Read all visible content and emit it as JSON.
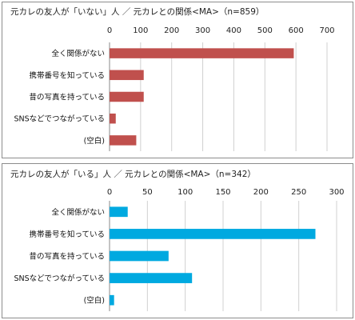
{
  "chart_data": [
    {
      "type": "bar",
      "orientation": "horizontal",
      "title": "元カレの友人が「いない」人 ／ 元カレとの関係<MA>（n=859）",
      "categories": [
        "全く関係がない",
        "携帯番号を知っている",
        "昔の写真を持っている",
        "SNSなどでつながっている",
        "(空白)"
      ],
      "values": [
        593,
        110,
        110,
        20,
        86
      ],
      "xticks": [
        0,
        100,
        200,
        300,
        400,
        500,
        600,
        700
      ],
      "xlim": [
        0,
        700
      ],
      "grid": true,
      "legend": "none",
      "bar_color": "#c0504d"
    },
    {
      "type": "bar",
      "orientation": "horizontal",
      "title": "元カレの友人が「いる」人 ／ 元カレとの関係<MA>（n=342）",
      "categories": [
        "全く関係がない",
        "携帯番号を知っている",
        "昔の写真を持っている",
        "SNSなどでつながっている",
        "(空白)"
      ],
      "values": [
        24,
        272,
        78,
        109,
        6
      ],
      "xticks": [
        0,
        50,
        100,
        150,
        200,
        250,
        300
      ],
      "xlim": [
        0,
        300
      ],
      "grid": true,
      "legend": "none",
      "bar_color": "#00a9e0"
    }
  ]
}
